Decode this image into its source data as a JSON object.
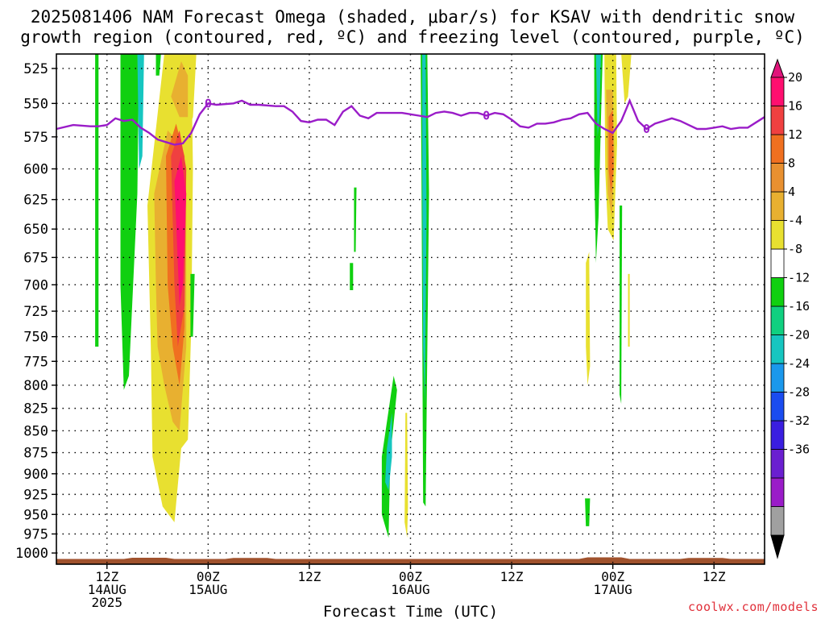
{
  "header": {
    "title_line1": "2025081406 NAM Forecast Omega (shaded, μbar/s) for KSAV with dendritic snow",
    "title_line2": "growth region (contoured, red, ºC) and freezing level (contoured, purple, ºC)"
  },
  "footer": {
    "credit": "coolwx.com/models"
  },
  "chart_data": {
    "type": "heatmap",
    "title": "2025081406 NAM Forecast Omega (shaded, μbar/s) for KSAV with dendritic snow growth region (contoured, red, ºC) and freezing level (contoured, purple, ºC)",
    "xlabel": "Forecast Time (UTC)",
    "ylabel": "",
    "x_range_hours_from_init": [
      0,
      84
    ],
    "x_ticks": [
      {
        "hour": 6,
        "label": "12Z",
        "label2": "14AUG",
        "label3": "2025"
      },
      {
        "hour": 18,
        "label": "00Z",
        "label2": "15AUG"
      },
      {
        "hour": 30,
        "label": "12Z"
      },
      {
        "hour": 42,
        "label": "00Z",
        "label2": "16AUG"
      },
      {
        "hour": 54,
        "label": "12Z"
      },
      {
        "hour": 66,
        "label": "00Z",
        "label2": "17AUG"
      },
      {
        "hour": 78,
        "label": "12Z"
      }
    ],
    "y_axis": {
      "unit": "hPa",
      "log_scale": true,
      "range": [
        1015,
        515
      ],
      "ticks": [
        525,
        550,
        575,
        600,
        625,
        650,
        675,
        700,
        725,
        750,
        775,
        800,
        825,
        850,
        875,
        900,
        925,
        950,
        975,
        1000
      ]
    },
    "grid": true,
    "colorbar": {
      "labels": [
        "20",
        "16",
        "12",
        "8",
        "4",
        "-4",
        "-8",
        "-12",
        "-16",
        "-20",
        "-24",
        "-28",
        "-32",
        "-36"
      ],
      "levels": [
        -36,
        -32,
        -28,
        -24,
        -20,
        -16,
        -12,
        -8,
        -4,
        4,
        8,
        12,
        16,
        20
      ],
      "colors": [
        "#000000",
        "#a0a0a0",
        "#9a1cc8",
        "#6a1fd0",
        "#3a1ee0",
        "#1a4cf0",
        "#1a98ec",
        "#16c6c0",
        "#10d080",
        "#10d010",
        "#ffffff",
        "#e8e030",
        "#e8b030",
        "#e89030",
        "#f07020",
        "#f04040",
        "#ff0f6f",
        "#e0137a"
      ]
    },
    "omega_regions": [
      {
        "label": "up-left strip",
        "value": -6,
        "color": "#10d010",
        "pts": [
          [
            4.6,
            515
          ],
          [
            5,
            515
          ],
          [
            5,
            760
          ],
          [
            4.6,
            760
          ]
        ]
      },
      {
        "label": "ascent col A",
        "value": -7,
        "color": "#10d010",
        "pts": [
          [
            7.6,
            515
          ],
          [
            9.8,
            515
          ],
          [
            9.6,
            620
          ],
          [
            8.6,
            790
          ],
          [
            8.0,
            805
          ],
          [
            7.6,
            700
          ]
        ]
      },
      {
        "label": "ascent col A2",
        "value": -9,
        "color": "#16c6c0",
        "pts": [
          [
            9.6,
            515
          ],
          [
            10.4,
            515
          ],
          [
            10.2,
            590
          ],
          [
            9.8,
            600
          ]
        ]
      },
      {
        "label": "core S1",
        "value": 6,
        "color": "#e8e030",
        "pts": [
          [
            10.8,
            630
          ],
          [
            12.8,
            515
          ],
          [
            16.0,
            515
          ],
          [
            16.2,
            600
          ],
          [
            16.0,
            740
          ],
          [
            15.6,
            860
          ],
          [
            14.8,
            870
          ],
          [
            14.0,
            960
          ],
          [
            12.6,
            940
          ],
          [
            11.4,
            880
          ],
          [
            11.2,
            760
          ]
        ]
      },
      {
        "label": "core S2",
        "value": 10,
        "color": "#e8b030",
        "pts": [
          [
            11.6,
            620
          ],
          [
            13.2,
            570
          ],
          [
            14.6,
            580
          ],
          [
            15.4,
            620
          ],
          [
            15.4,
            760
          ],
          [
            14.6,
            850
          ],
          [
            13.8,
            840
          ],
          [
            12.8,
            800
          ],
          [
            12.0,
            760
          ],
          [
            11.8,
            700
          ]
        ]
      },
      {
        "label": "core S3",
        "value": 14,
        "color": "#f07020",
        "pts": [
          [
            13.0,
            590
          ],
          [
            14.2,
            565
          ],
          [
            15.2,
            590
          ],
          [
            15.2,
            740
          ],
          [
            14.6,
            800
          ],
          [
            13.8,
            760
          ],
          [
            13.2,
            700
          ]
        ]
      },
      {
        "label": "core S4",
        "value": 18,
        "color": "#f04040",
        "pts": [
          [
            13.6,
            590
          ],
          [
            14.6,
            570
          ],
          [
            15.4,
            600
          ],
          [
            15.2,
            720
          ],
          [
            14.4,
            760
          ],
          [
            14.0,
            700
          ]
        ]
      },
      {
        "label": "core S5",
        "value": 21,
        "color": "#ff0f6f",
        "pts": [
          [
            14.0,
            610
          ],
          [
            14.8,
            590
          ],
          [
            15.4,
            620
          ],
          [
            15.0,
            700
          ],
          [
            14.6,
            720
          ],
          [
            14.4,
            680
          ]
        ]
      },
      {
        "label": "tower S6",
        "value": 6,
        "color": "#e8e030",
        "pts": [
          [
            13.2,
            515
          ],
          [
            16.6,
            515
          ],
          [
            16.2,
            560
          ],
          [
            15.6,
            570
          ],
          [
            14.6,
            560
          ],
          [
            13.6,
            540
          ]
        ]
      },
      {
        "label": "tower S7",
        "value": 10,
        "color": "#e8b030",
        "pts": [
          [
            13.6,
            545
          ],
          [
            14.8,
            520
          ],
          [
            15.6,
            530
          ],
          [
            15.6,
            560
          ],
          [
            14.6,
            560
          ]
        ]
      },
      {
        "label": "thin cyan streak",
        "value": -6,
        "color": "#10d010",
        "pts": [
          [
            11.8,
            515
          ],
          [
            12.4,
            515
          ],
          [
            12.2,
            530
          ],
          [
            11.8,
            530
          ]
        ]
      },
      {
        "label": "right edge drip",
        "value": -6,
        "color": "#10d010",
        "pts": [
          [
            15.9,
            690
          ],
          [
            16.4,
            690
          ],
          [
            16.2,
            750
          ],
          [
            15.9,
            750
          ]
        ]
      },
      {
        "label": "16AUG up",
        "value": -6,
        "color": "#10d010",
        "pts": [
          [
            35.3,
            615
          ],
          [
            35.6,
            615
          ],
          [
            35.5,
            670
          ],
          [
            35.3,
            670
          ]
        ]
      },
      {
        "label": "16AUG up2",
        "value": -6,
        "color": "#10d010",
        "pts": [
          [
            34.8,
            680
          ],
          [
            35.2,
            680
          ],
          [
            35.2,
            705
          ],
          [
            34.8,
            705
          ]
        ]
      },
      {
        "label": "16AUG col",
        "value": -8,
        "color": "#10d010",
        "pts": [
          [
            43.2,
            515
          ],
          [
            44.0,
            515
          ],
          [
            44.2,
            620
          ],
          [
            43.8,
            940
          ],
          [
            43.5,
            935
          ],
          [
            43.3,
            600
          ]
        ]
      },
      {
        "label": "16AUG col teal",
        "value": -10,
        "color": "#16c6c0",
        "pts": [
          [
            43.4,
            515
          ],
          [
            43.8,
            515
          ],
          [
            43.9,
            640
          ],
          [
            43.7,
            820
          ],
          [
            43.5,
            760
          ],
          [
            43.4,
            600
          ]
        ]
      },
      {
        "label": "16AUG low green",
        "value": -8,
        "color": "#10d010",
        "pts": [
          [
            38.6,
            880
          ],
          [
            40.0,
            790
          ],
          [
            40.4,
            805
          ],
          [
            39.6,
            880
          ],
          [
            39.4,
            980
          ],
          [
            38.6,
            950
          ]
        ]
      },
      {
        "label": "16AUG low teal",
        "value": -12,
        "color": "#16c6c0",
        "pts": [
          [
            39.2,
            870
          ],
          [
            39.8,
            830
          ],
          [
            39.8,
            880
          ],
          [
            39.4,
            920
          ],
          [
            39.0,
            910
          ]
        ]
      },
      {
        "label": "16AUG low yellow",
        "value": 6,
        "color": "#e8e030",
        "pts": [
          [
            41.4,
            830
          ],
          [
            41.6,
            830
          ],
          [
            41.7,
            940
          ],
          [
            41.6,
            980
          ],
          [
            41.3,
            960
          ]
        ]
      },
      {
        "label": "17AUG col",
        "value": -7,
        "color": "#10d010",
        "pts": [
          [
            63.8,
            515
          ],
          [
            64.8,
            515
          ],
          [
            64.6,
            560
          ],
          [
            64.3,
            640
          ],
          [
            64.0,
            680
          ],
          [
            63.8,
            600
          ]
        ]
      },
      {
        "label": "17AUG col teal",
        "value": -12,
        "color": "#16c6c0",
        "pts": [
          [
            64.0,
            515
          ],
          [
            64.6,
            515
          ],
          [
            64.4,
            560
          ],
          [
            64.2,
            575
          ]
        ]
      },
      {
        "label": "17AUG warm",
        "value": 6,
        "color": "#e8e030",
        "pts": [
          [
            65.0,
            515
          ],
          [
            66.4,
            515
          ],
          [
            66.5,
            580
          ],
          [
            66.1,
            660
          ],
          [
            65.4,
            650
          ],
          [
            65.1,
            600
          ]
        ]
      },
      {
        "label": "17AUG warm2",
        "value": 10,
        "color": "#e8b030",
        "pts": [
          [
            65.2,
            540
          ],
          [
            66.0,
            540
          ],
          [
            66.2,
            590
          ],
          [
            65.9,
            640
          ],
          [
            65.4,
            620
          ]
        ]
      },
      {
        "label": "17AUG warm3",
        "value": 14,
        "color": "#f07020",
        "pts": [
          [
            65.5,
            560
          ],
          [
            66.0,
            555
          ],
          [
            66.1,
            600
          ],
          [
            65.8,
            620
          ],
          [
            65.5,
            600
          ]
        ]
      },
      {
        "label": "17AUG upper yellow",
        "value": 6,
        "color": "#e8e030",
        "pts": [
          [
            67.0,
            515
          ],
          [
            68.2,
            515
          ],
          [
            67.8,
            545
          ],
          [
            67.4,
            550
          ]
        ]
      },
      {
        "label": "17AUG mid yellow",
        "value": 6,
        "color": "#e8e030",
        "pts": [
          [
            62.8,
            680
          ],
          [
            63.2,
            670
          ],
          [
            63.3,
            780
          ],
          [
            63.0,
            800
          ],
          [
            62.8,
            760
          ]
        ]
      },
      {
        "label": "17AUG green drip",
        "value": -6,
        "color": "#10d010",
        "pts": [
          [
            66.8,
            630
          ],
          [
            67.1,
            630
          ],
          [
            67.0,
            820
          ],
          [
            66.8,
            810
          ]
        ]
      },
      {
        "label": "17AUG tiny yellow",
        "value": 6,
        "color": "#e8e030",
        "pts": [
          [
            67.8,
            690
          ],
          [
            68.0,
            690
          ],
          [
            68.0,
            760
          ],
          [
            67.8,
            760
          ]
        ]
      },
      {
        "label": "17AUG tiny green",
        "value": -6,
        "color": "#10d010",
        "pts": [
          [
            62.7,
            930
          ],
          [
            63.3,
            930
          ],
          [
            63.2,
            965
          ],
          [
            62.8,
            965
          ]
        ]
      }
    ],
    "freezing_level": {
      "label": "0",
      "color": "#9a1cc8",
      "points": [
        [
          0,
          569
        ],
        [
          2,
          566
        ],
        [
          4,
          567
        ],
        [
          5,
          567
        ],
        [
          6,
          566
        ],
        [
          7,
          561
        ],
        [
          8,
          563
        ],
        [
          9,
          562
        ],
        [
          10,
          568
        ],
        [
          11,
          572
        ],
        [
          12,
          577
        ],
        [
          13,
          579
        ],
        [
          14,
          581
        ],
        [
          15,
          580
        ],
        [
          16,
          572
        ],
        [
          17,
          558
        ],
        [
          18,
          550
        ],
        [
          19,
          551
        ],
        [
          21,
          550
        ],
        [
          22,
          548
        ],
        [
          23,
          551
        ],
        [
          24,
          551
        ],
        [
          26,
          552
        ],
        [
          27,
          552
        ],
        [
          28,
          556
        ],
        [
          29,
          563
        ],
        [
          30,
          564
        ],
        [
          31,
          562
        ],
        [
          32,
          562
        ],
        [
          33,
          566
        ],
        [
          34,
          556
        ],
        [
          35,
          552
        ],
        [
          36,
          559
        ],
        [
          37,
          561
        ],
        [
          38,
          557
        ],
        [
          39,
          557
        ],
        [
          40,
          557
        ],
        [
          41,
          557
        ],
        [
          42,
          558
        ],
        [
          43,
          559
        ],
        [
          44,
          560
        ],
        [
          45,
          557
        ],
        [
          46,
          556
        ],
        [
          47,
          557
        ],
        [
          48,
          559
        ],
        [
          49,
          557
        ],
        [
          50,
          557
        ],
        [
          51,
          559
        ],
        [
          52,
          557
        ],
        [
          53,
          558
        ],
        [
          54,
          562
        ],
        [
          55,
          567
        ],
        [
          56,
          568
        ],
        [
          57,
          565
        ],
        [
          58,
          565
        ],
        [
          59,
          564
        ],
        [
          60,
          562
        ],
        [
          61,
          561
        ],
        [
          62,
          558
        ],
        [
          63,
          557
        ],
        [
          64,
          565
        ],
        [
          65,
          569
        ],
        [
          66,
          572
        ],
        [
          67,
          563
        ],
        [
          68,
          548
        ],
        [
          69,
          563
        ],
        [
          70,
          569
        ],
        [
          71,
          565
        ],
        [
          72,
          563
        ],
        [
          73,
          561
        ],
        [
          74,
          563
        ],
        [
          75,
          566
        ],
        [
          76,
          569
        ],
        [
          77,
          569
        ],
        [
          78,
          568
        ],
        [
          79,
          567
        ],
        [
          80,
          569
        ],
        [
          81,
          568
        ],
        [
          82,
          568
        ],
        [
          83,
          564
        ],
        [
          84,
          560
        ]
      ],
      "label_hours": [
        18,
        51,
        70
      ]
    },
    "terrain": {
      "color": "#a0522d",
      "top_hpa": 1008
    }
  }
}
